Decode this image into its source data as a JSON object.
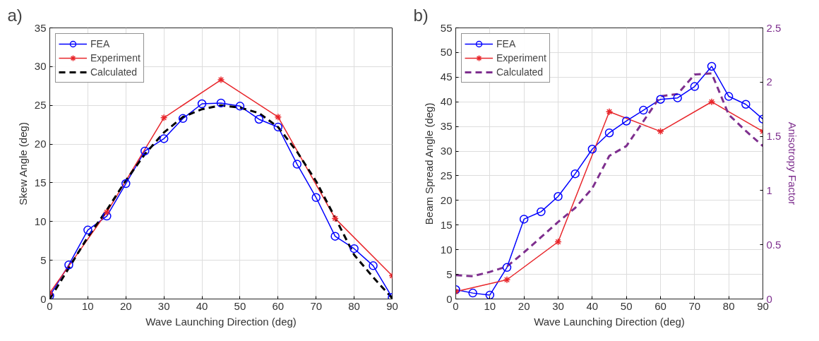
{
  "chart_data": [
    {
      "type": "line",
      "title": "a)",
      "xlabel": "Wave Launching Direction (deg)",
      "ylabel": "Skew Angle (deg)",
      "xlim": [
        0,
        90
      ],
      "xticks": [
        0,
        10,
        20,
        30,
        40,
        50,
        60,
        70,
        80,
        90
      ],
      "ylim": [
        0,
        35
      ],
      "yticks": [
        0,
        5,
        10,
        15,
        20,
        25,
        30,
        35
      ],
      "grid": true,
      "legend": "top left",
      "series": [
        {
          "name": "FEA",
          "color": "#0000ff",
          "marker": "circle",
          "line_style": "solid",
          "x": [
            0,
            5,
            10,
            15,
            20,
            25,
            30,
            35,
            40,
            45,
            50,
            55,
            60,
            65,
            70,
            75,
            80,
            85,
            90
          ],
          "values": [
            0.4,
            4.4,
            8.9,
            10.7,
            14.9,
            19.1,
            20.7,
            23.3,
            25.2,
            25.3,
            24.9,
            23.2,
            22.2,
            17.4,
            13.1,
            8.1,
            6.5,
            4.3,
            0.2
          ]
        },
        {
          "name": "Experiment",
          "color": "#e8262b",
          "marker": "cross",
          "line_style": "solid",
          "x": [
            0,
            15,
            30,
            45,
            60,
            75,
            90
          ],
          "values": [
            0.8,
            11.2,
            23.4,
            28.3,
            23.5,
            10.4,
            3.0
          ]
        },
        {
          "name": "Calculated",
          "color": "#000000",
          "marker": "none",
          "line_style": "dashed",
          "x": [
            0,
            5,
            10,
            15,
            20,
            25,
            30,
            35,
            40,
            45,
            50,
            55,
            60,
            65,
            70,
            75,
            80,
            85,
            90
          ],
          "values": [
            0,
            4,
            8,
            11.5,
            15.3,
            18.7,
            21.5,
            23.5,
            24.5,
            25,
            24.7,
            24,
            22.2,
            19,
            15.2,
            10.5,
            5.7,
            2.8,
            0.1
          ]
        }
      ]
    },
    {
      "type": "line",
      "title": "b)",
      "xlabel": "Wave Launching Direction (deg)",
      "ylabel": "Beam Spread Angle (deg)",
      "y2label": "Anisotropy Factor",
      "xlim": [
        0,
        90
      ],
      "xticks": [
        0,
        10,
        20,
        30,
        40,
        50,
        60,
        70,
        80,
        90
      ],
      "ylim": [
        0,
        55
      ],
      "yticks": [
        0,
        5,
        10,
        15,
        20,
        25,
        30,
        35,
        40,
        45,
        50,
        55
      ],
      "y2lim": [
        0,
        2.5
      ],
      "y2ticks": [
        0,
        0.5,
        1,
        1.5,
        2,
        2.5
      ],
      "grid": true,
      "legend": "top left",
      "series": [
        {
          "name": "FEA",
          "color": "#0000ff",
          "marker": "circle",
          "line_style": "solid",
          "x": [
            0,
            5,
            10,
            15,
            20,
            25,
            30,
            35,
            40,
            45,
            50,
            55,
            60,
            65,
            70,
            75,
            80,
            85,
            90
          ],
          "values": [
            1.9,
            1.2,
            0.8,
            6.4,
            16.2,
            17.7,
            20.8,
            25.4,
            30.4,
            33.7,
            36.1,
            38.3,
            40.5,
            40.8,
            43.1,
            47.2,
            41.1,
            39.5,
            36.5
          ]
        },
        {
          "name": "Experiment",
          "color": "#e8262b",
          "marker": "cross",
          "line_style": "solid",
          "x": [
            0,
            15,
            30,
            45,
            60,
            75,
            90
          ],
          "values": [
            1.5,
            3.9,
            11.6,
            38,
            34,
            40,
            34
          ]
        },
        {
          "name": "Calculated",
          "color": "#7e2f8e",
          "marker": "none",
          "line_style": "dashed",
          "axis": "y2",
          "x": [
            0,
            5,
            10,
            15,
            20,
            25,
            30,
            35,
            40,
            45,
            50,
            55,
            60,
            65,
            70,
            75,
            80,
            85,
            90
          ],
          "values": [
            0.22,
            0.21,
            0.25,
            0.3,
            0.43,
            0.57,
            0.71,
            0.84,
            1.02,
            1.32,
            1.41,
            1.64,
            1.87,
            1.89,
            2.07,
            2.08,
            1.7,
            1.55,
            1.41
          ]
        }
      ]
    }
  ]
}
